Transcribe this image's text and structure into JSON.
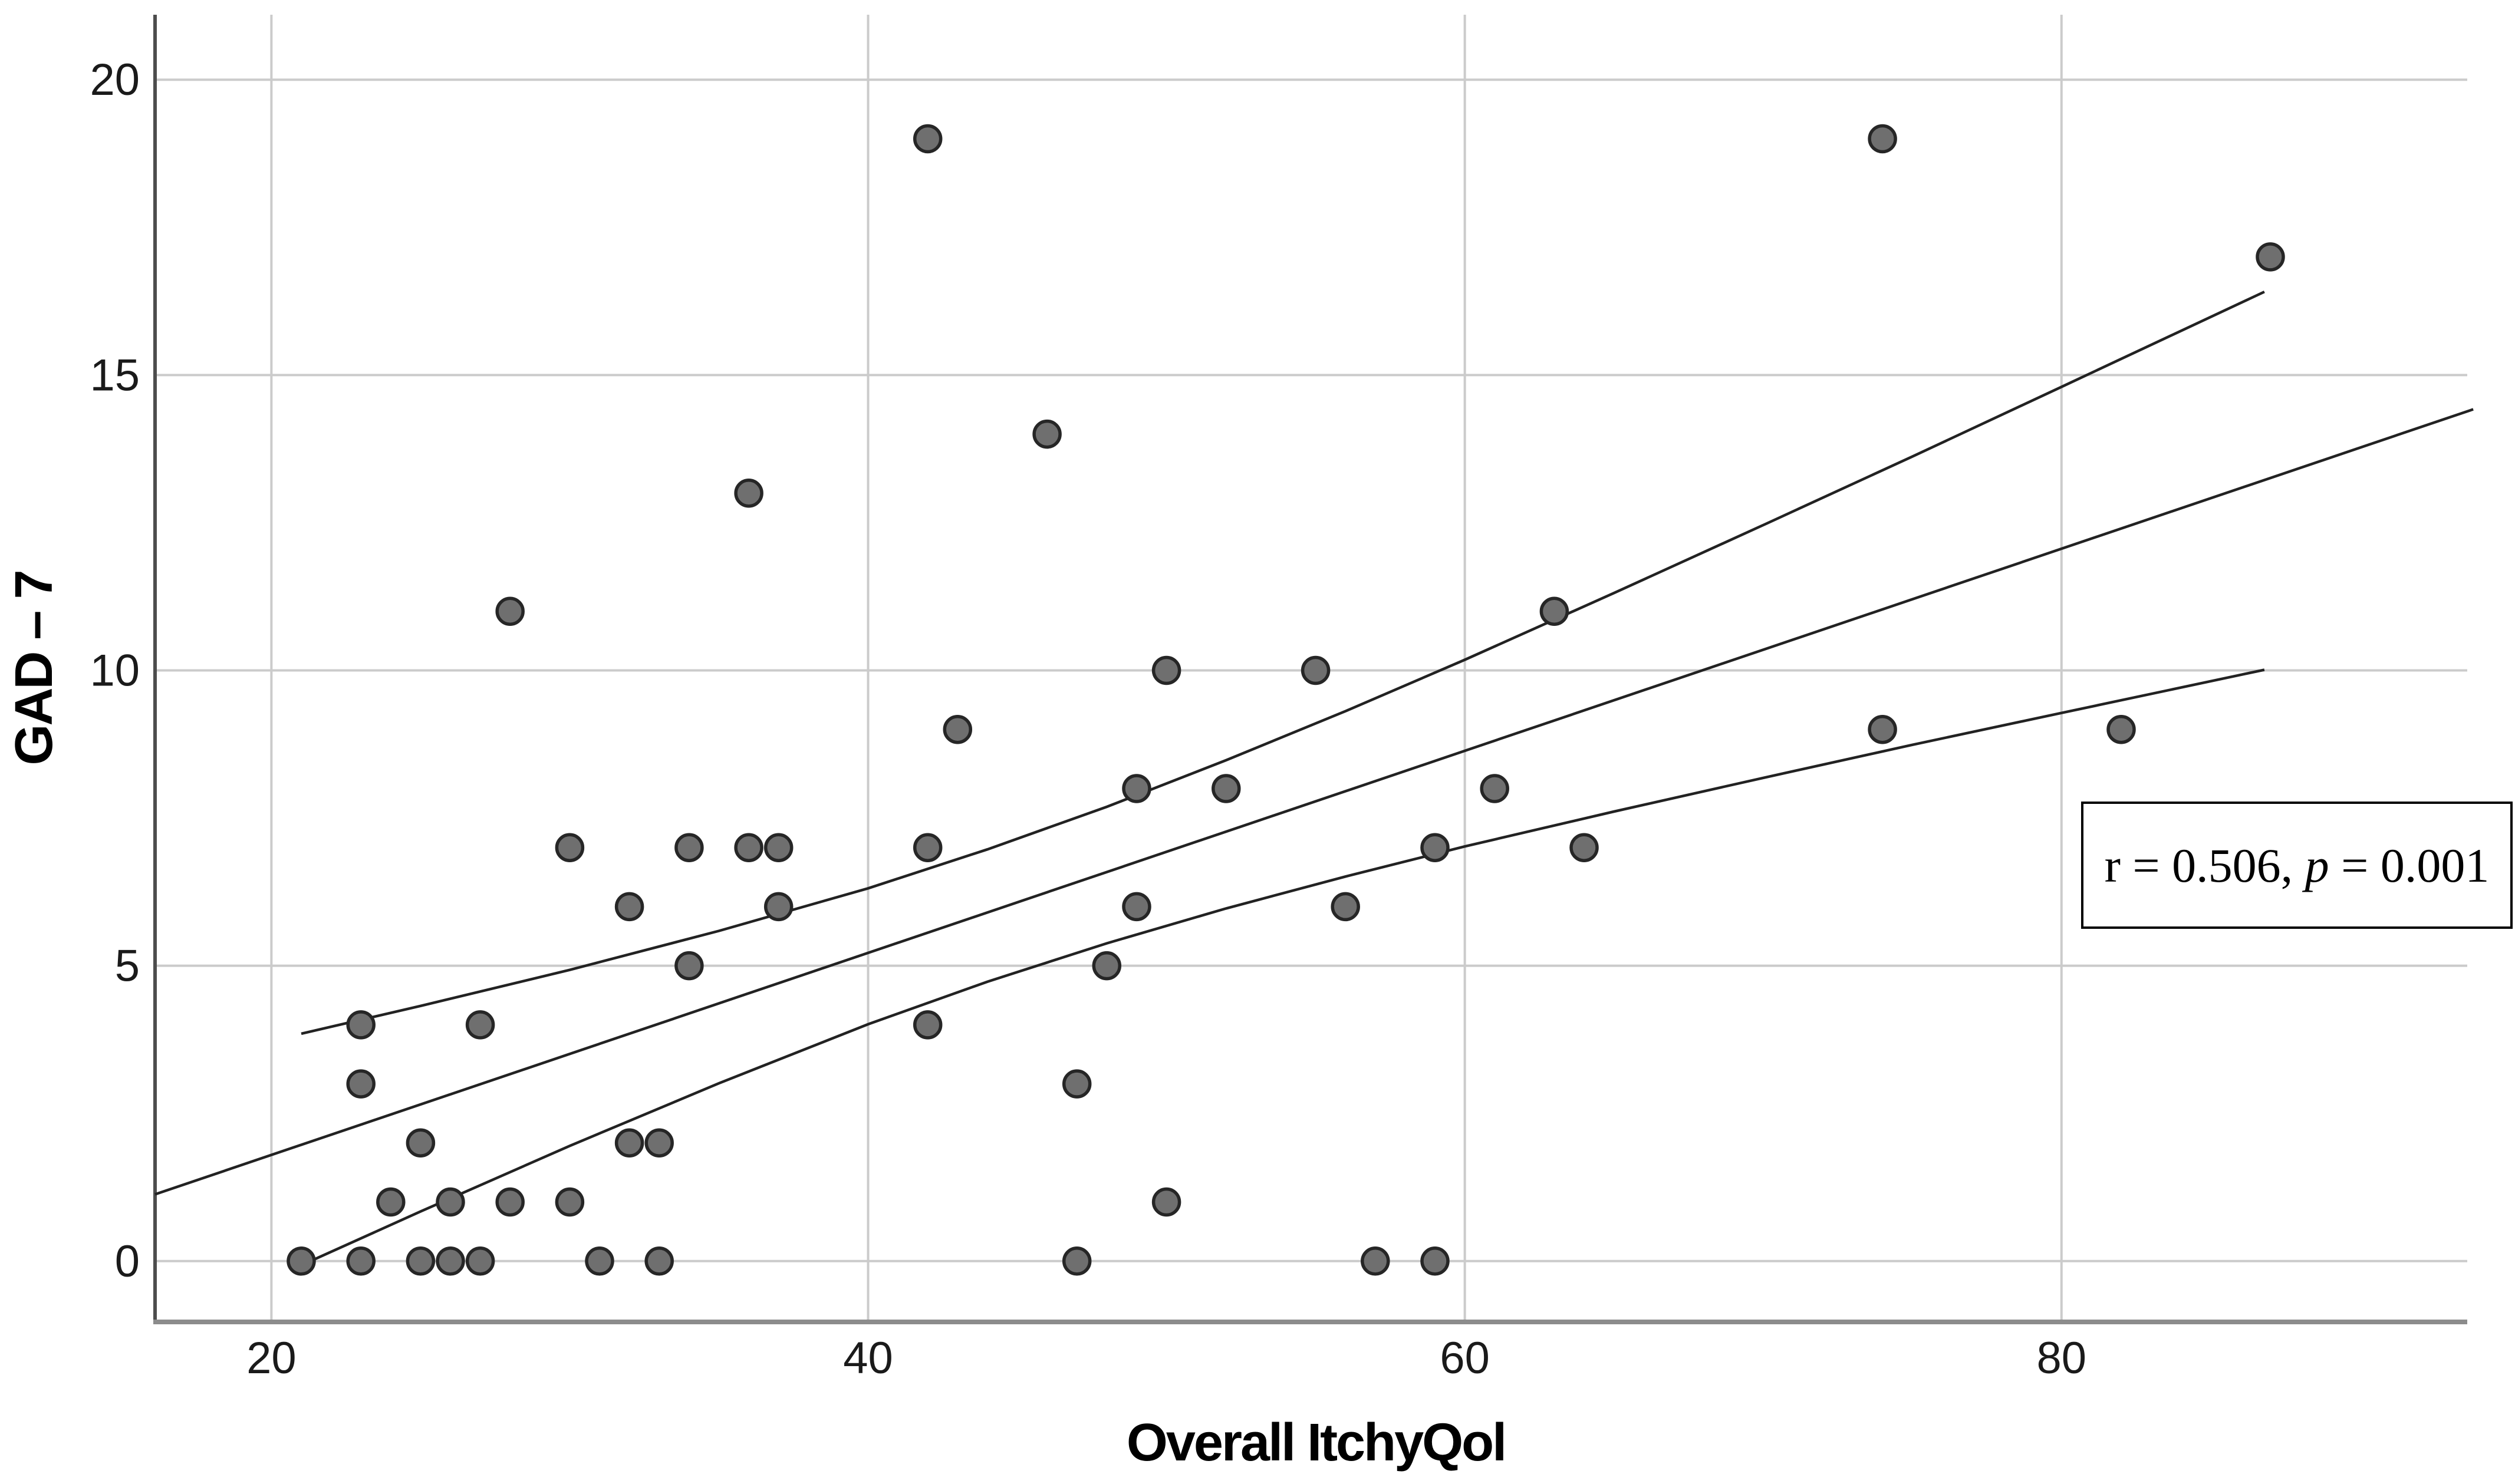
{
  "chart_data": {
    "type": "scatter",
    "title": "",
    "xlabel": "Overall ItchyQol",
    "ylabel": "GAD – 7",
    "xlim": [
      16.1,
      93.6
    ],
    "ylim": [
      -1.03,
      21.1
    ],
    "x_ticks": [
      20,
      40,
      60,
      80
    ],
    "x_tick_labels": [
      "20",
      "40",
      "60",
      "80"
    ],
    "y_ticks": [
      0,
      5,
      10,
      15,
      20
    ],
    "y_tick_labels": [
      "0",
      "5",
      "10",
      "15",
      "20"
    ],
    "grid": true,
    "legend": false,
    "points": [
      [
        21,
        0
      ],
      [
        23,
        0
      ],
      [
        25,
        0
      ],
      [
        26,
        0
      ],
      [
        27,
        0
      ],
      [
        31,
        0
      ],
      [
        33,
        0
      ],
      [
        47,
        0
      ],
      [
        57,
        0
      ],
      [
        59,
        0
      ],
      [
        24,
        1
      ],
      [
        26,
        1
      ],
      [
        28,
        1
      ],
      [
        30,
        1
      ],
      [
        50,
        1
      ],
      [
        25,
        2
      ],
      [
        32,
        2
      ],
      [
        33,
        2
      ],
      [
        23,
        3
      ],
      [
        47,
        3
      ],
      [
        23,
        4
      ],
      [
        27,
        4
      ],
      [
        42,
        4
      ],
      [
        34,
        5
      ],
      [
        48,
        5
      ],
      [
        32,
        6
      ],
      [
        37,
        6
      ],
      [
        49,
        6
      ],
      [
        56,
        6
      ],
      [
        30,
        7
      ],
      [
        34,
        7
      ],
      [
        36,
        7
      ],
      [
        37,
        7
      ],
      [
        42,
        7
      ],
      [
        59,
        7
      ],
      [
        64,
        7
      ],
      [
        49,
        8
      ],
      [
        52,
        8
      ],
      [
        61,
        8
      ],
      [
        43,
        9
      ],
      [
        74,
        9
      ],
      [
        82,
        9
      ],
      [
        50,
        10
      ],
      [
        55,
        10
      ],
      [
        28,
        11
      ],
      [
        63,
        11
      ],
      [
        36,
        13
      ],
      [
        46,
        14
      ],
      [
        87,
        17
      ],
      [
        42,
        19
      ],
      [
        74,
        19
      ]
    ],
    "fit_line": {
      "x1": 16.1,
      "y1": 1.13,
      "x2": 93.8,
      "y2": 14.42
    },
    "ci_upper": [
      [
        21,
        3.85
      ],
      [
        25,
        4.32
      ],
      [
        30,
        4.93
      ],
      [
        35,
        5.59
      ],
      [
        40,
        6.31
      ],
      [
        44,
        6.97
      ],
      [
        48,
        7.69
      ],
      [
        52,
        8.48
      ],
      [
        56,
        9.31
      ],
      [
        60,
        10.18
      ],
      [
        65,
        11.31
      ],
      [
        70,
        12.46
      ],
      [
        75,
        13.62
      ],
      [
        80,
        14.8
      ],
      [
        86.8,
        16.41
      ]
    ],
    "ci_lower": [
      [
        21,
        -0.07
      ],
      [
        25,
        0.84
      ],
      [
        30,
        1.95
      ],
      [
        35,
        3.01
      ],
      [
        40,
        4.01
      ],
      [
        44,
        4.73
      ],
      [
        48,
        5.38
      ],
      [
        52,
        5.97
      ],
      [
        56,
        6.51
      ],
      [
        60,
        7.02
      ],
      [
        65,
        7.61
      ],
      [
        70,
        8.18
      ],
      [
        75,
        8.74
      ],
      [
        80,
        9.28
      ],
      [
        86.8,
        10.01
      ]
    ],
    "annotation": {
      "full_text": "r = 0.506, p = 0.001",
      "before_p": "r = 0.506, ",
      "p_symbol": "p",
      "after_p": " = 0.001"
    },
    "colors": {
      "marker_fill": "#6f6f6f",
      "marker_stroke": "#262626",
      "fit_line": "#222222",
      "grid": "#cbcbcb",
      "x_axis": "#8c8c8c",
      "y_axis": "#4d4d4d",
      "text": "#1a1a1a",
      "annotation_border": "#000000",
      "background": "#ffffff"
    }
  }
}
